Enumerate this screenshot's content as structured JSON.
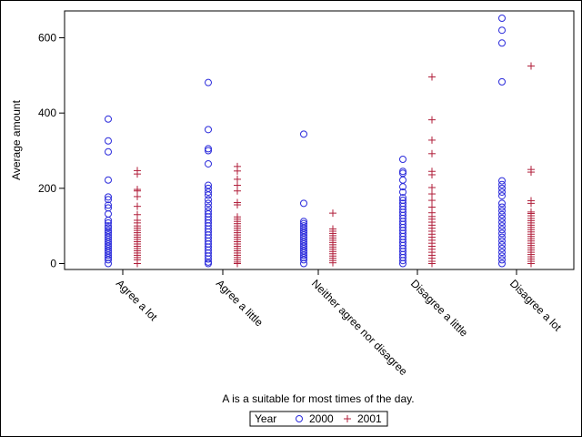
{
  "chart_data": {
    "type": "scatter",
    "title": "",
    "xlabel": "A is a suitable for most times of the day.",
    "ylabel": "Average amount",
    "ylim": [
      0,
      660
    ],
    "yticks": [
      0,
      200,
      400,
      600
    ],
    "categories": [
      "Agree a lot",
      "Agree a little",
      "Neither agree nor disagree",
      "Disagree a little",
      "Disagree a lot"
    ],
    "grid": false,
    "legend_placement": "bottom-center",
    "legend": {
      "title": "Year",
      "entries": [
        {
          "label": "2000",
          "marker": "circle",
          "color": "#2a2adb"
        },
        {
          "label": "2001",
          "marker": "plus",
          "color": "#b01e3a"
        }
      ]
    },
    "series": [
      {
        "name": "2000",
        "marker": "circle",
        "color": "#2a2adb",
        "points_by_category": [
          [
            384,
            326,
            297,
            222,
            177,
            170,
            155,
            148,
            132,
            115,
            108,
            100,
            95,
            88,
            82,
            76,
            70,
            64,
            58,
            52,
            46,
            40,
            34,
            28,
            22,
            16,
            10,
            0
          ],
          [
            481,
            356,
            305,
            300,
            265,
            208,
            200,
            190,
            182,
            170,
            160,
            150,
            140,
            132,
            124,
            116,
            108,
            100,
            92,
            84,
            76,
            68,
            60,
            52,
            44,
            36,
            28,
            20,
            12,
            4,
            0
          ],
          [
            344,
            160,
            112,
            106,
            100,
            94,
            88,
            82,
            76,
            70,
            64,
            58,
            52,
            46,
            40,
            34,
            28,
            22,
            16,
            10,
            0
          ],
          [
            277,
            245,
            240,
            222,
            204,
            190,
            175,
            168,
            160,
            152,
            144,
            136,
            128,
            120,
            112,
            104,
            96,
            88,
            80,
            72,
            64,
            56,
            48,
            40,
            32,
            24,
            16,
            8,
            0
          ],
          [
            652,
            620,
            586,
            483,
            220,
            210,
            200,
            190,
            180,
            160,
            150,
            140,
            130,
            120,
            110,
            100,
            90,
            80,
            70,
            60,
            50,
            40,
            30,
            20,
            10,
            0
          ]
        ]
      },
      {
        "name": "2001",
        "marker": "plus",
        "color": "#b01e3a",
        "points_by_category": [
          [
            247,
            238,
            197,
            193,
            178,
            152,
            130,
            115,
            108,
            100,
            94,
            88,
            82,
            76,
            70,
            64,
            58,
            52,
            46,
            40,
            34,
            28,
            22,
            16,
            10,
            0
          ],
          [
            258,
            246,
            224,
            208,
            193,
            162,
            156,
            124,
            118,
            112,
            106,
            100,
            94,
            88,
            82,
            76,
            70,
            64,
            58,
            52,
            46,
            40,
            34,
            28,
            22,
            16,
            10,
            4,
            0
          ],
          [
            134,
            92,
            86,
            80,
            74,
            68,
            62,
            56,
            50,
            44,
            38,
            32,
            26,
            20,
            14,
            8,
            2
          ],
          [
            496,
            382,
            328,
            292,
            245,
            236,
            202,
            185,
            168,
            150,
            135,
            125,
            118,
            110,
            102,
            94,
            86,
            78,
            70,
            62,
            54,
            46,
            38,
            30,
            22,
            14,
            6,
            0
          ],
          [
            525,
            250,
            243,
            167,
            160,
            137,
            133,
            127,
            120,
            114,
            108,
            102,
            96,
            90,
            84,
            78,
            72,
            66,
            60,
            54,
            48,
            42,
            36,
            30,
            24,
            18,
            12,
            6,
            0
          ]
        ]
      }
    ]
  }
}
